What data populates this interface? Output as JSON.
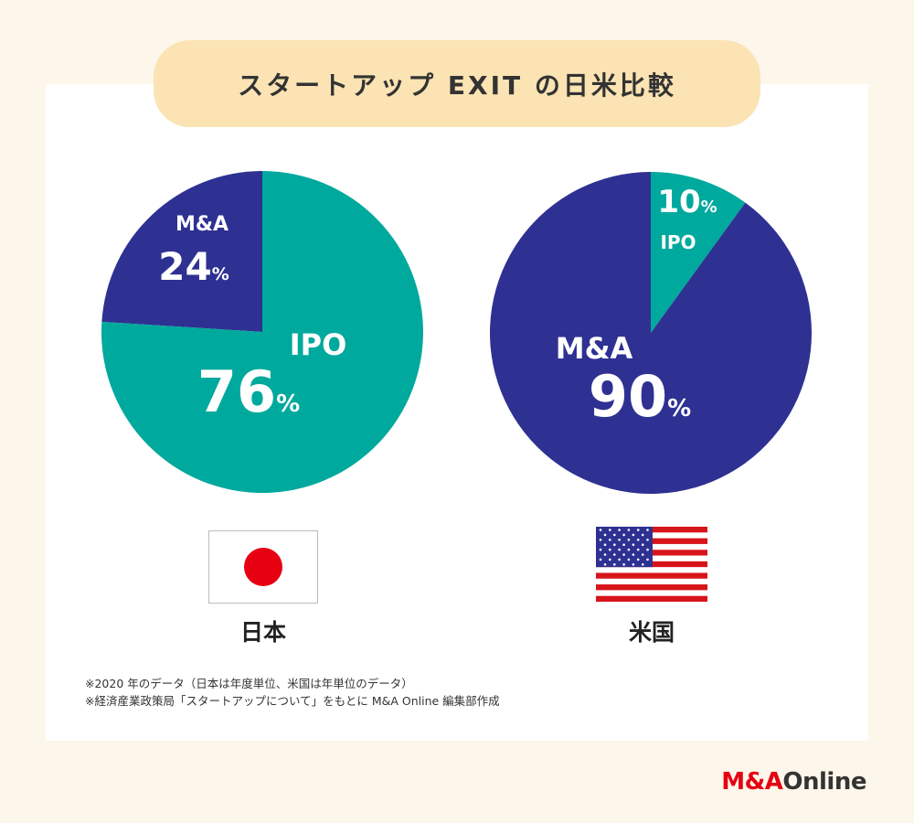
{
  "title": "スタートアップ EXIT の日米比較",
  "colors": {
    "ma": "#2e3192",
    "ipo": "#00a99d",
    "title_bg": "#fbe3b3",
    "bg": "#fdf6ea"
  },
  "chart_data": [
    {
      "type": "pie",
      "country": "日本",
      "slices": [
        {
          "label": "M&A",
          "value": 24,
          "unit": "%"
        },
        {
          "label": "IPO",
          "value": 76,
          "unit": "%"
        }
      ]
    },
    {
      "type": "pie",
      "country": "米国",
      "slices": [
        {
          "label": "IPO",
          "value": 10,
          "unit": "%"
        },
        {
          "label": "M&A",
          "value": 90,
          "unit": "%"
        }
      ]
    }
  ],
  "notes": [
    "※2020 年のデータ（日本は年度単位、米国は年単位のデータ）",
    "※経済産業政策局「スタートアップについて」をもとに M&A Online 編集部作成"
  ],
  "brand": {
    "part1": "M&A",
    "part2": "Online"
  }
}
